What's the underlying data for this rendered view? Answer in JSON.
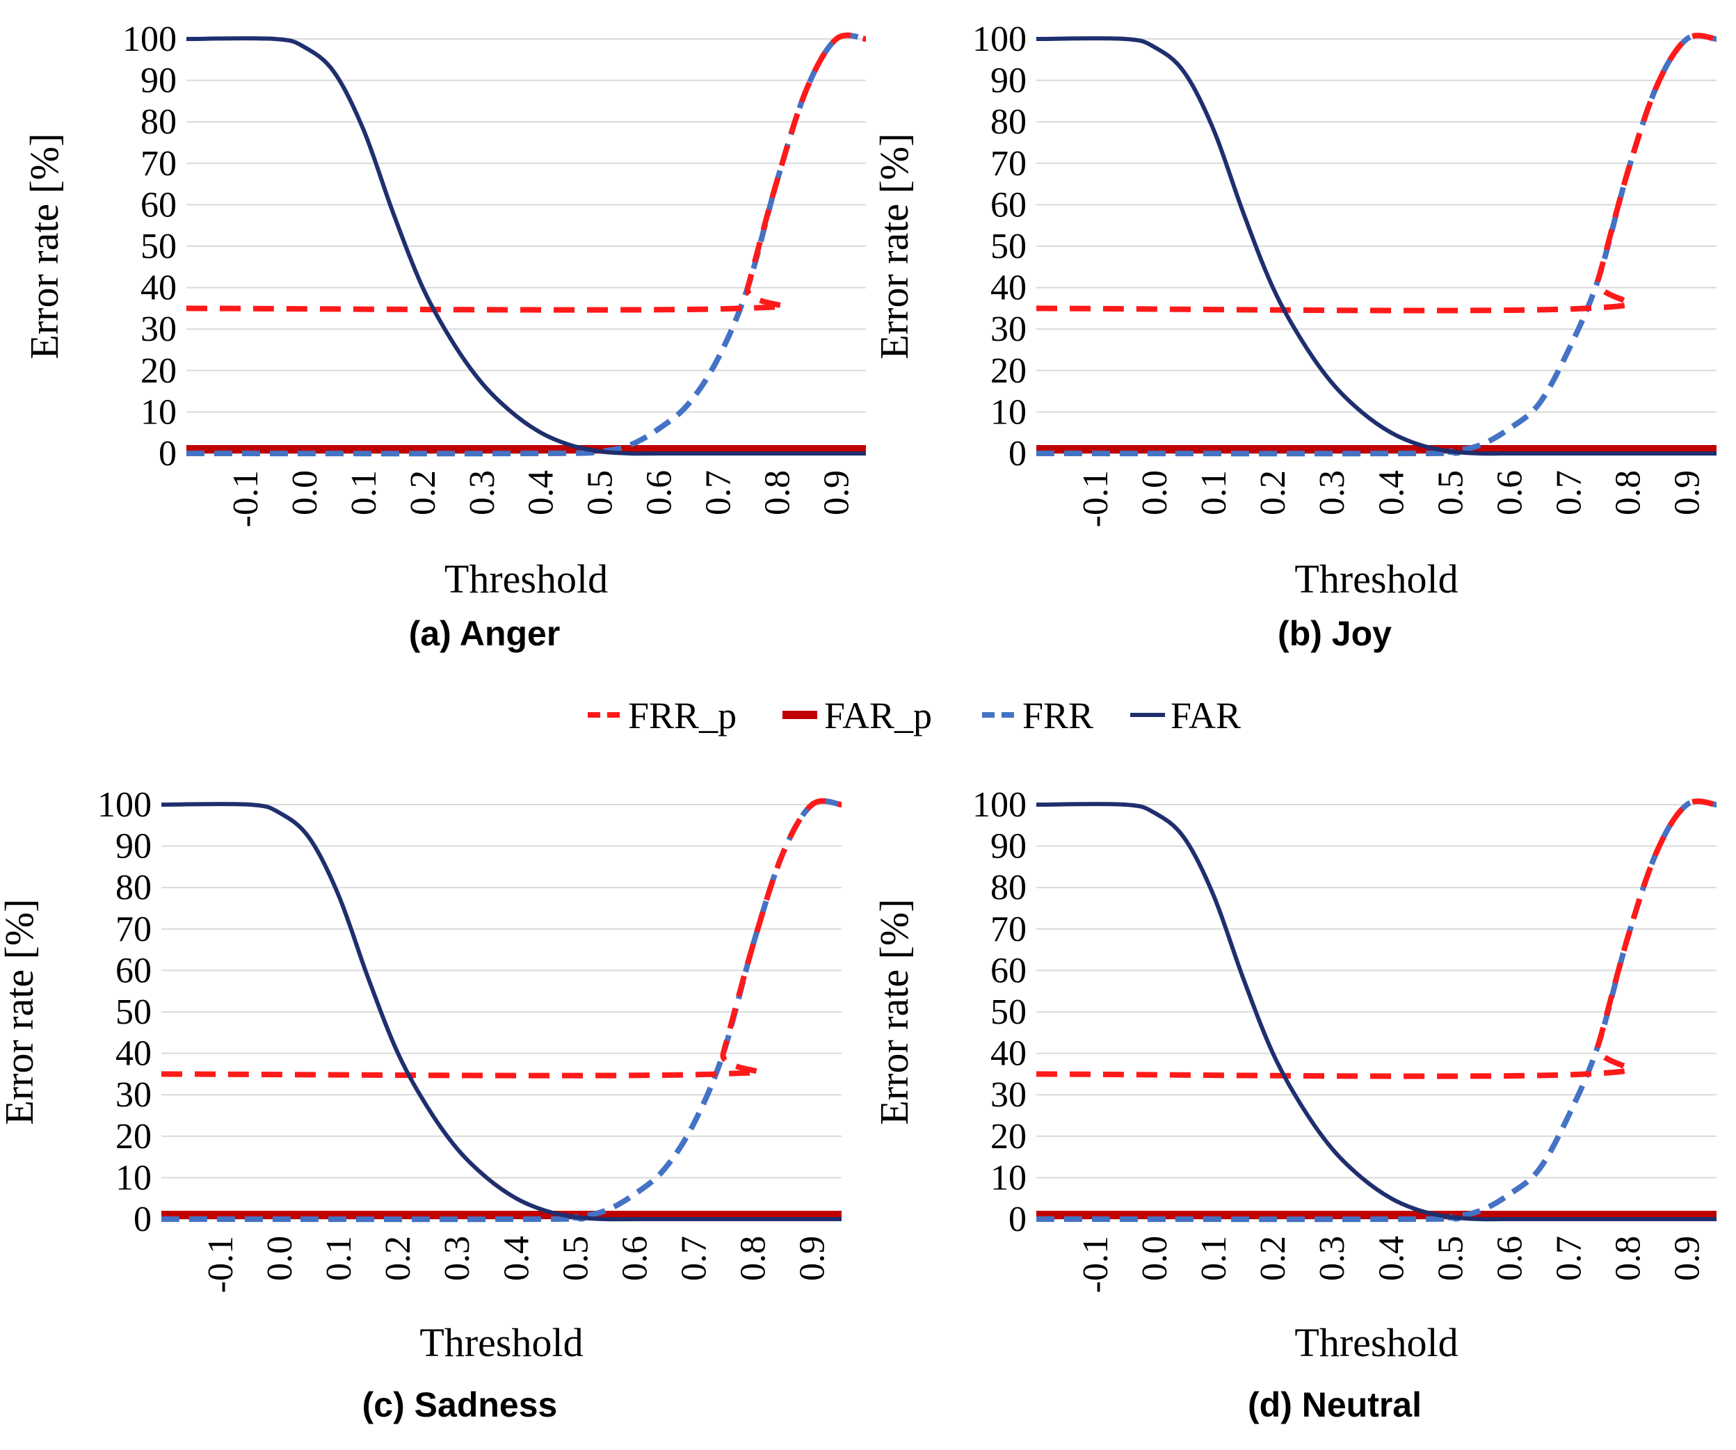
{
  "colors": {
    "FRR_p": "#ff1a1a",
    "FAR_p": "#c00000",
    "FRR": "#4472c4",
    "FAR": "#1f2f6e",
    "grid": "#d9d9d9"
  },
  "legend": {
    "items": [
      {
        "name": "FRR_p",
        "label": "FRR_p",
        "style": "dashed",
        "color": "#ff1a1a"
      },
      {
        "name": "FAR_p",
        "label": "FAR_p",
        "style": "thick",
        "color": "#c00000"
      },
      {
        "name": "FRR",
        "label": "FRR",
        "style": "dashed",
        "color": "#4472c4"
      },
      {
        "name": "FAR",
        "label": "FAR",
        "style": "solid",
        "color": "#1f2f6e"
      }
    ]
  },
  "chart_data": [
    {
      "type": "line",
      "caption": "(a) Anger",
      "xlabel": "Threshold",
      "ylabel": "Error rate [%]",
      "xlim": [
        -0.2,
        0.95
      ],
      "ylim": [
        0,
        100
      ],
      "xticks": [
        "-0.1",
        "0.0",
        "0.1",
        "0.2",
        "0.3",
        "0.4",
        "0.5",
        "0.6",
        "0.7",
        "0.8",
        "0.9"
      ],
      "yticks": [
        "0",
        "10",
        "20",
        "30",
        "40",
        "50",
        "60",
        "70",
        "80",
        "90",
        "100"
      ],
      "series": [
        {
          "name": "FAR",
          "x": [
            -0.2,
            -0.05,
            0.0,
            0.05,
            0.1,
            0.15,
            0.2,
            0.25,
            0.3,
            0.35,
            0.4,
            0.45,
            0.5,
            0.55,
            0.6,
            0.7,
            0.8,
            0.95
          ],
          "y": [
            100,
            100,
            98,
            92,
            78,
            58,
            40,
            27,
            17,
            10,
            5,
            2,
            0.5,
            0,
            0,
            0,
            0,
            0
          ]
        },
        {
          "name": "FRR",
          "x": [
            -0.2,
            0.4,
            0.5,
            0.55,
            0.6,
            0.65,
            0.7,
            0.75,
            0.8,
            0.85,
            0.9,
            0.95
          ],
          "y": [
            0,
            0,
            0.5,
            2,
            6,
            12,
            23,
            40,
            66,
            88,
            100,
            100
          ]
        },
        {
          "name": "FRR_p",
          "x": [
            -0.2,
            0.74,
            0.75,
            0.8,
            0.85,
            0.9,
            0.95
          ],
          "y": [
            35,
            35,
            40,
            66,
            88,
            100,
            100
          ]
        },
        {
          "name": "FAR_p",
          "x": [
            -0.2,
            0.95
          ],
          "y": [
            1,
            1
          ]
        }
      ]
    },
    {
      "type": "line",
      "caption": "(b) Joy",
      "xlabel": "Threshold",
      "ylabel": "Error rate [%]",
      "xlim": [
        -0.2,
        0.95
      ],
      "ylim": [
        0,
        100
      ],
      "xticks": [
        "-0.1",
        "0.0",
        "0.1",
        "0.2",
        "0.3",
        "0.4",
        "0.5",
        "0.6",
        "0.7",
        "0.8",
        "0.9"
      ],
      "yticks": [
        "0",
        "10",
        "20",
        "30",
        "40",
        "50",
        "60",
        "70",
        "80",
        "90",
        "100"
      ],
      "series": [
        {
          "name": "FAR",
          "x": [
            -0.2,
            -0.05,
            0.0,
            0.05,
            0.1,
            0.15,
            0.2,
            0.25,
            0.3,
            0.35,
            0.4,
            0.45,
            0.5,
            0.55,
            0.6,
            0.7,
            0.8,
            0.95
          ],
          "y": [
            100,
            100,
            98,
            92,
            78,
            58,
            40,
            27,
            17,
            10,
            5,
            2,
            0.5,
            0,
            0,
            0,
            0,
            0
          ]
        },
        {
          "name": "FRR",
          "x": [
            -0.2,
            0.45,
            0.5,
            0.55,
            0.6,
            0.65,
            0.7,
            0.75,
            0.8,
            0.85,
            0.9,
            0.95
          ],
          "y": [
            0,
            0,
            0.5,
            2,
            6,
            12,
            25,
            42,
            68,
            89,
            100,
            100
          ]
        },
        {
          "name": "FRR_p",
          "x": [
            -0.2,
            0.73,
            0.75,
            0.8,
            0.85,
            0.9,
            0.95
          ],
          "y": [
            35,
            35,
            42,
            68,
            89,
            100,
            100
          ]
        },
        {
          "name": "FAR_p",
          "x": [
            -0.2,
            0.95
          ],
          "y": [
            1,
            1
          ]
        }
      ]
    },
    {
      "type": "line",
      "caption": "(c) Sadness",
      "xlabel": "Threshold",
      "ylabel": "Error rate [%]",
      "xlim": [
        -0.2,
        0.95
      ],
      "ylim": [
        0,
        100
      ],
      "xticks": [
        "-0.1",
        "0.0",
        "0.1",
        "0.2",
        "0.3",
        "0.4",
        "0.5",
        "0.6",
        "0.7",
        "0.8",
        "0.9"
      ],
      "yticks": [
        "0",
        "10",
        "20",
        "30",
        "40",
        "50",
        "60",
        "70",
        "80",
        "90",
        "100"
      ],
      "series": [
        {
          "name": "FAR",
          "x": [
            -0.2,
            -0.05,
            0.0,
            0.05,
            0.1,
            0.15,
            0.2,
            0.25,
            0.3,
            0.35,
            0.4,
            0.45,
            0.5,
            0.55,
            0.6,
            0.7,
            0.8,
            0.95
          ],
          "y": [
            100,
            100,
            98,
            92,
            78,
            58,
            40,
            27,
            17,
            10,
            5,
            2,
            0.5,
            0,
            0,
            0,
            0,
            0
          ]
        },
        {
          "name": "FRR",
          "x": [
            -0.2,
            0.45,
            0.5,
            0.55,
            0.6,
            0.65,
            0.7,
            0.75,
            0.8,
            0.85,
            0.9,
            0.95
          ],
          "y": [
            0,
            0,
            0.5,
            2,
            6,
            12,
            23,
            40,
            66,
            88,
            100,
            100
          ]
        },
        {
          "name": "FRR_p",
          "x": [
            -0.2,
            0.74,
            0.75,
            0.8,
            0.85,
            0.9,
            0.95
          ],
          "y": [
            35,
            35,
            40,
            66,
            88,
            100,
            100
          ]
        },
        {
          "name": "FAR_p",
          "x": [
            -0.2,
            0.95
          ],
          "y": [
            1,
            1
          ]
        }
      ]
    },
    {
      "type": "line",
      "caption": "(d) Neutral",
      "xlabel": "Threshold",
      "ylabel": "Error rate [%]",
      "xlim": [
        -0.2,
        0.95
      ],
      "ylim": [
        0,
        100
      ],
      "xticks": [
        "-0.1",
        "0.0",
        "0.1",
        "0.2",
        "0.3",
        "0.4",
        "0.5",
        "0.6",
        "0.7",
        "0.8",
        "0.9"
      ],
      "yticks": [
        "0",
        "10",
        "20",
        "30",
        "40",
        "50",
        "60",
        "70",
        "80",
        "90",
        "100"
      ],
      "series": [
        {
          "name": "FAR",
          "x": [
            -0.2,
            -0.05,
            0.0,
            0.05,
            0.1,
            0.15,
            0.2,
            0.25,
            0.3,
            0.35,
            0.4,
            0.45,
            0.5,
            0.55,
            0.6,
            0.7,
            0.8,
            0.95
          ],
          "y": [
            100,
            100,
            98,
            92,
            78,
            58,
            40,
            27,
            17,
            10,
            5,
            2,
            0.5,
            0,
            0,
            0,
            0,
            0
          ]
        },
        {
          "name": "FRR",
          "x": [
            -0.2,
            0.45,
            0.5,
            0.55,
            0.6,
            0.65,
            0.7,
            0.75,
            0.8,
            0.85,
            0.9,
            0.95
          ],
          "y": [
            0,
            0,
            0.5,
            2,
            6,
            12,
            25,
            42,
            68,
            89,
            100,
            100
          ]
        },
        {
          "name": "FRR_p",
          "x": [
            -0.2,
            0.73,
            0.75,
            0.8,
            0.85,
            0.9,
            0.95
          ],
          "y": [
            35,
            35,
            42,
            68,
            89,
            100,
            100
          ]
        },
        {
          "name": "FAR_p",
          "x": [
            -0.2,
            0.95
          ],
          "y": [
            1,
            1
          ]
        }
      ]
    }
  ]
}
